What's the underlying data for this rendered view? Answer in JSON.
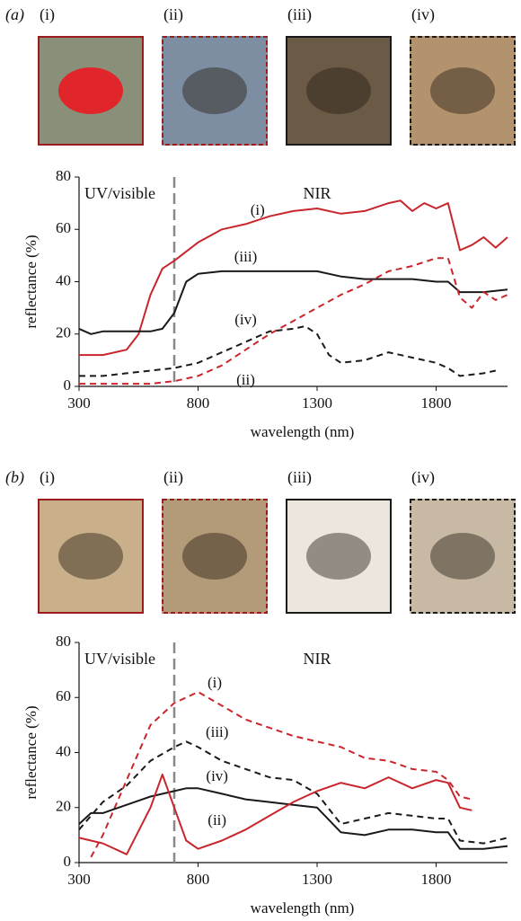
{
  "chart_data": [
    {
      "type": "line",
      "panel_label": "(a)",
      "image_labels": [
        "(i)",
        "(ii)",
        "(iii)",
        "(iv)"
      ],
      "xlabel": "wavelength (nm)",
      "ylabel": "reflectance (%)",
      "region_labels": [
        "UV/visible",
        "NIR"
      ],
      "divider": 700,
      "xlim": [
        300,
        2100
      ],
      "ylim": [
        0,
        80
      ],
      "xticks": [
        300,
        800,
        1300,
        1800
      ],
      "yticks": [
        0,
        20,
        40,
        60,
        80
      ],
      "series": [
        {
          "name": "(i)",
          "color": "#c8262c",
          "dashed": false,
          "label_x": 1050,
          "label_y": 67,
          "x": [
            300,
            400,
            500,
            550,
            600,
            650,
            700,
            800,
            900,
            1000,
            1100,
            1200,
            1300,
            1400,
            1500,
            1600,
            1650,
            1700,
            1750,
            1800,
            1850,
            1900,
            1950,
            2000,
            2050,
            2100
          ],
          "values": [
            12,
            12,
            14,
            20,
            35,
            45,
            48,
            55,
            60,
            62,
            65,
            67,
            68,
            66,
            67,
            70,
            71,
            67,
            70,
            68,
            70,
            52,
            54,
            57,
            53,
            57
          ]
        },
        {
          "name": "(iii)",
          "color": "#1a1a1a",
          "dashed": false,
          "label_x": 1000,
          "label_y": 49,
          "x": [
            300,
            350,
            400,
            500,
            600,
            650,
            700,
            750,
            800,
            900,
            1000,
            1100,
            1200,
            1300,
            1400,
            1500,
            1600,
            1700,
            1800,
            1850,
            1900,
            2000,
            2100
          ],
          "values": [
            22,
            20,
            21,
            21,
            21,
            22,
            28,
            40,
            43,
            44,
            44,
            44,
            44,
            44,
            42,
            41,
            41,
            41,
            40,
            40,
            36,
            36,
            37
          ]
        },
        {
          "name": "(iv)",
          "color": "#1a1a1a",
          "dashed": true,
          "label_x": 1000,
          "label_y": 25,
          "x": [
            300,
            400,
            500,
            600,
            700,
            800,
            900,
            1000,
            1100,
            1200,
            1250,
            1300,
            1350,
            1400,
            1500,
            1600,
            1700,
            1800,
            1850,
            1900,
            2000,
            2050
          ],
          "values": [
            4,
            4,
            5,
            6,
            7,
            9,
            13,
            17,
            21,
            22,
            23,
            20,
            12,
            9,
            10,
            13,
            11,
            9,
            7,
            4,
            5,
            6
          ]
        },
        {
          "name": "(ii)",
          "color": "#c8262c",
          "dashed": true,
          "label_x": 1000,
          "label_y": 2,
          "x": [
            300,
            400,
            500,
            600,
            700,
            800,
            900,
            1000,
            1100,
            1200,
            1300,
            1400,
            1500,
            1600,
            1700,
            1800,
            1850,
            1900,
            1950,
            2000,
            2050,
            2100
          ],
          "values": [
            1,
            1,
            1,
            1,
            2,
            4,
            8,
            14,
            20,
            25,
            30,
            35,
            39,
            44,
            46,
            49,
            49,
            34,
            30,
            36,
            33,
            35
          ]
        }
      ]
    },
    {
      "type": "line",
      "panel_label": "(b)",
      "image_labels": [
        "(i)",
        "(ii)",
        "(iii)",
        "(iv)"
      ],
      "xlabel": "wavelength (nm)",
      "ylabel": "reflectance (%)",
      "region_labels": [
        "UV/visible",
        "NIR"
      ],
      "divider": 700,
      "xlim": [
        300,
        2100
      ],
      "ylim": [
        0,
        80
      ],
      "xticks": [
        300,
        800,
        1300,
        1800
      ],
      "yticks": [
        0,
        20,
        40,
        60,
        80
      ],
      "series": [
        {
          "name": "(i)",
          "color": "#c8262c",
          "dashed": true,
          "label_x": 870,
          "label_y": 65,
          "x": [
            350,
            400,
            500,
            600,
            700,
            800,
            900,
            1000,
            1100,
            1200,
            1300,
            1400,
            1500,
            1600,
            1700,
            1800,
            1850,
            1900,
            1950
          ],
          "values": [
            2,
            10,
            30,
            50,
            58,
            62,
            57,
            52,
            49,
            46,
            44,
            42,
            38,
            37,
            34,
            33,
            30,
            24,
            23
          ]
        },
        {
          "name": "(iii)",
          "color": "#1a1a1a",
          "dashed": true,
          "label_x": 880,
          "label_y": 47,
          "x": [
            300,
            400,
            500,
            600,
            700,
            750,
            800,
            900,
            1000,
            1100,
            1200,
            1300,
            1400,
            1500,
            1600,
            1700,
            1800,
            1850,
            1900,
            2000,
            2100
          ],
          "values": [
            12,
            22,
            28,
            37,
            42,
            44,
            42,
            37,
            34,
            31,
            30,
            25,
            14,
            16,
            18,
            17,
            16,
            16,
            8,
            7,
            9
          ]
        },
        {
          "name": "(iv)",
          "color": "#1a1a1a",
          "dashed": false,
          "label_x": 880,
          "label_y": 31,
          "x": [
            300,
            350,
            400,
            500,
            600,
            700,
            750,
            800,
            900,
            1000,
            1100,
            1200,
            1300,
            1400,
            1500,
            1600,
            1700,
            1800,
            1850,
            1900,
            2000,
            2100
          ],
          "values": [
            14,
            18,
            18,
            21,
            24,
            26,
            27,
            27,
            25,
            23,
            22,
            21,
            20,
            11,
            10,
            12,
            12,
            11,
            11,
            5,
            5,
            6
          ]
        },
        {
          "name": "(ii)",
          "color": "#c8262c",
          "dashed": false,
          "label_x": 880,
          "label_y": 15,
          "x": [
            300,
            400,
            500,
            600,
            650,
            700,
            750,
            800,
            900,
            1000,
            1100,
            1200,
            1300,
            1400,
            1500,
            1600,
            1700,
            1800,
            1850,
            1900,
            1950
          ],
          "values": [
            9,
            7,
            3,
            20,
            32,
            20,
            8,
            5,
            8,
            12,
            17,
            22,
            26,
            29,
            27,
            31,
            27,
            30,
            29,
            20,
            19
          ]
        }
      ]
    }
  ]
}
